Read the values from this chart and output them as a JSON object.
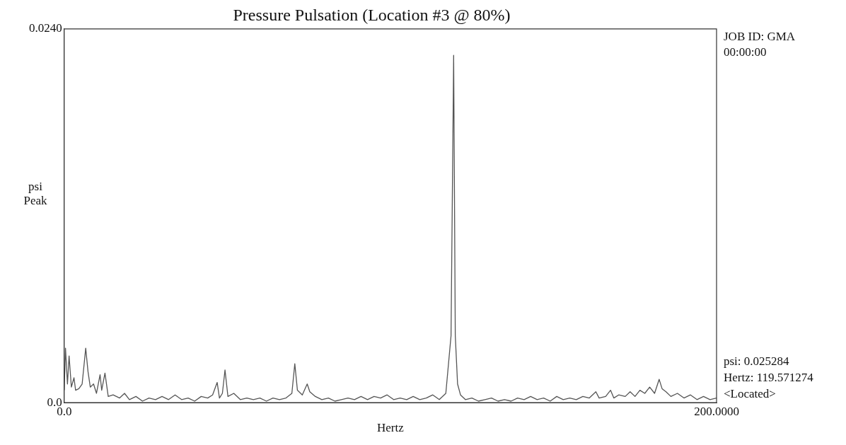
{
  "chart_data": {
    "type": "line",
    "title": "Pressure Pulsation (Location #3 @ 80%)",
    "xlabel": "Hertz",
    "ylabel": "psi Peak",
    "x": [
      0,
      0.4,
      1.0,
      1.5,
      2.2,
      3.0,
      3.5,
      4.5,
      5.5,
      6.6,
      7.3,
      8.0,
      9.0,
      9.9,
      11.0,
      11.5,
      12.5,
      13.5,
      15,
      17,
      18.5,
      20,
      22,
      24,
      26,
      28,
      30,
      32,
      34,
      36,
      38,
      40,
      42,
      44,
      45.5,
      46.9,
      47.6,
      48.5,
      49.3,
      50.2,
      52,
      54,
      56,
      58,
      60,
      62,
      64,
      66,
      68,
      69.8,
      70.7,
      71.5,
      73,
      74.5,
      75.3,
      77,
      79,
      81,
      83,
      85,
      87,
      89,
      91,
      93,
      95,
      97,
      99,
      101,
      103,
      105,
      107,
      109,
      111,
      113,
      115,
      117,
      118.6,
      119.4,
      119.9,
      120.6,
      121.5,
      123,
      125,
      127,
      129,
      131,
      133,
      135,
      137,
      139,
      141,
      143,
      145,
      147,
      149,
      151,
      153,
      155,
      157,
      159,
      161,
      163,
      164,
      166,
      167.5,
      168.5,
      170,
      172,
      173.5,
      175,
      176.5,
      178,
      179.5,
      181,
      182.4,
      183.3,
      184.5,
      186,
      188,
      190,
      192,
      194,
      196,
      198,
      200
    ],
    "series": [
      {
        "color": "#555555",
        "values": [
          0.0008,
          0.0035,
          0.0012,
          0.003,
          0.001,
          0.0016,
          0.0008,
          0.0009,
          0.0012,
          0.0035,
          0.002,
          0.001,
          0.0012,
          0.0006,
          0.0018,
          0.0008,
          0.0019,
          0.0004,
          0.0005,
          0.0003,
          0.0006,
          0.0002,
          0.0004,
          0.0001,
          0.0003,
          0.0002,
          0.0004,
          0.0002,
          0.0005,
          0.0002,
          0.0003,
          0.0001,
          0.0004,
          0.0003,
          0.0005,
          0.0013,
          0.0003,
          0.0006,
          0.0021,
          0.0004,
          0.0006,
          0.0002,
          0.0003,
          0.0002,
          0.0003,
          0.0001,
          0.0003,
          0.0002,
          0.0003,
          0.0006,
          0.0025,
          0.0008,
          0.0005,
          0.0012,
          0.0007,
          0.0004,
          0.0002,
          0.0003,
          0.0001,
          0.0002,
          0.0003,
          0.0002,
          0.0004,
          0.0002,
          0.0004,
          0.0003,
          0.0005,
          0.0002,
          0.0003,
          0.0002,
          0.0004,
          0.0002,
          0.0003,
          0.0005,
          0.0002,
          0.0006,
          0.0043,
          0.0223,
          0.0043,
          0.0012,
          0.0005,
          0.0002,
          0.0003,
          0.0001,
          0.0002,
          0.0003,
          0.0001,
          0.0002,
          0.0001,
          0.0003,
          0.0002,
          0.0004,
          0.0002,
          0.0003,
          0.0001,
          0.0004,
          0.0002,
          0.0003,
          0.0002,
          0.0004,
          0.0003,
          0.0007,
          0.0003,
          0.0004,
          0.0008,
          0.0003,
          0.0005,
          0.0004,
          0.0007,
          0.0004,
          0.0008,
          0.0006,
          0.001,
          0.0006,
          0.0015,
          0.0009,
          0.0007,
          0.0004,
          0.0006,
          0.0003,
          0.0005,
          0.0002,
          0.0004,
          0.0002,
          0.0003
        ]
      }
    ],
    "xlim": [
      0,
      200
    ],
    "ylim": [
      0,
      0.024
    ],
    "xticks": [
      {
        "value": 0,
        "label": "0.0"
      },
      {
        "value": 200,
        "label": "200.0000"
      }
    ],
    "yticks": [
      {
        "value": 0,
        "label": "0.0"
      },
      {
        "value": 0.024,
        "label": "0.0240"
      }
    ],
    "grid": false,
    "legend": false,
    "marker": "none",
    "line_style": "solid",
    "annotations": [
      "JOB ID: GMA",
      "00:00:00",
      "psi: 0.025284",
      "Hertz: 119.571274",
      "<Located>"
    ]
  }
}
